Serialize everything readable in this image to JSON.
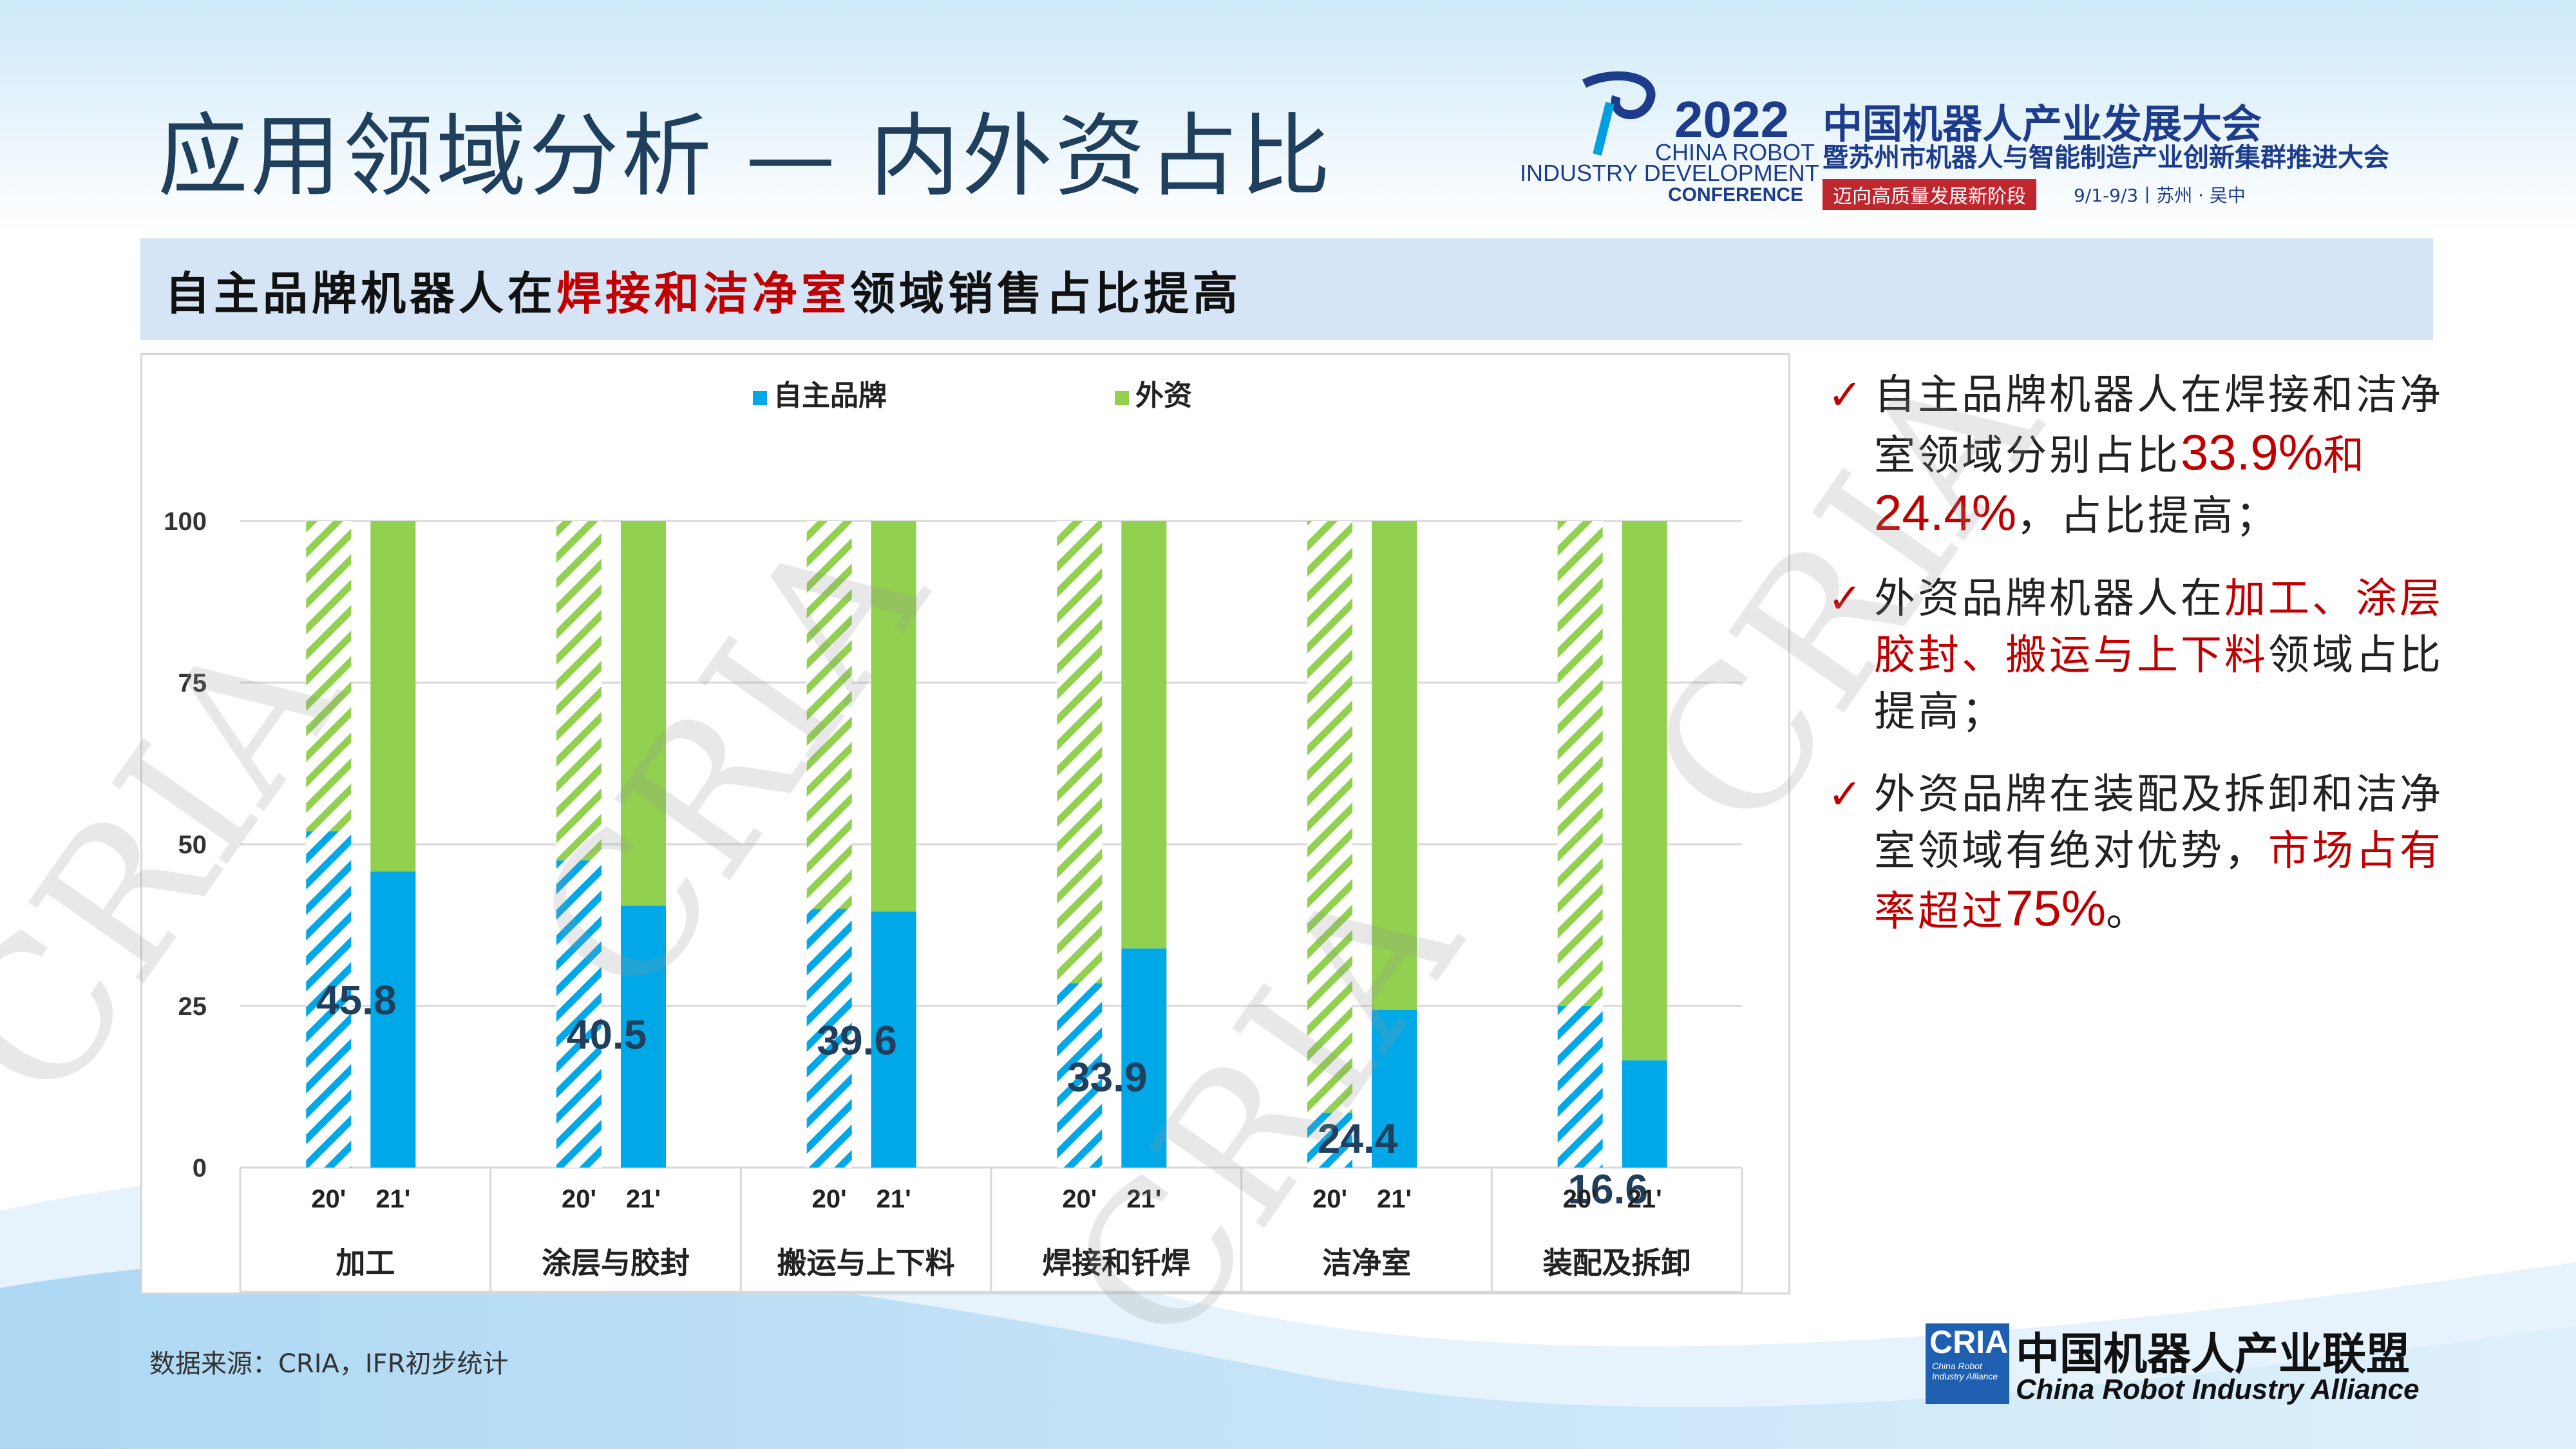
{
  "page": {
    "title": "应用领域分析  — 内外资占比",
    "banner": {
      "pre": "自主品牌机器人在",
      "highlight": "焊接和洁净室",
      "post": "领域销售占比提高"
    },
    "source": "数据来源：CRIA，IFR初步统计",
    "watermark": "CRIA"
  },
  "logo": {
    "year": "2022",
    "en1": "CHINA ROBOT",
    "en2": "INDUSTRY DEVELOPMENT",
    "en3": "CONFERENCE",
    "zh1": "中国机器人产业发展大会",
    "zh2": "暨苏州市机器人与智能制造产业创新集群推进大会",
    "tagline": "迈向高质量发展新阶段",
    "date_place": "9/1-9/3丨苏州 · 吴中"
  },
  "alliance": {
    "abbr": "CRIA",
    "abbr_sub": "China Robot Industry Alliance",
    "zh": "中国机器人产业联盟",
    "en": "China Robot Industry Alliance"
  },
  "bullets": [
    {
      "parts": [
        {
          "t": "自主品牌机器人在焊接和洁净室领域分别占比",
          "red": false
        },
        {
          "t": "33.9%",
          "red": true,
          "num": true
        },
        {
          "t": "和",
          "red": true
        },
        {
          "t": "24.4%",
          "red": true,
          "num": true
        },
        {
          "t": "，占比提高；",
          "red": false
        }
      ]
    },
    {
      "parts": [
        {
          "t": "外资品牌机器人在",
          "red": false
        },
        {
          "t": "加工、涂层胶封、搬运与上下料",
          "red": true
        },
        {
          "t": "领域占比提高；",
          "red": false
        }
      ]
    },
    {
      "parts": [
        {
          "t": "外资品牌在装配及拆卸和洁净室领域有绝对优势，",
          "red": false
        },
        {
          "t": "市场占有率超过",
          "red": true
        },
        {
          "t": "75%",
          "red": true,
          "num": true
        },
        {
          "t": "。",
          "red": false
        }
      ]
    }
  ],
  "chart_data": {
    "type": "bar",
    "stacked": true,
    "categories": [
      "加工",
      "涂层与胶封",
      "搬运与上下料",
      "焊接和钎焊",
      "洁净室",
      "装配及拆卸"
    ],
    "sub_categories": [
      "20'",
      "21'"
    ],
    "series": [
      {
        "name": "自主品牌",
        "color": "#00a8e8",
        "values_20": [
          52,
          47.5,
          40,
          28.5,
          8.5,
          25
        ],
        "values_21": [
          45.8,
          40.5,
          39.6,
          33.9,
          24.4,
          16.6
        ]
      },
      {
        "name": "外资",
        "color": "#92d050",
        "values_20": [
          48,
          52.5,
          60,
          71.5,
          91.5,
          75
        ],
        "values_21": [
          54.2,
          59.5,
          60.4,
          66.1,
          75.6,
          83.4
        ]
      }
    ],
    "data_labels": [
      "45.8",
      "40.5",
      "39.6",
      "33.9",
      "24.4",
      "16.6"
    ],
    "yticks": [
      "0",
      "25",
      "50",
      "75",
      "100"
    ],
    "ylim": [
      0,
      100
    ],
    "grid": true,
    "legend_position": "top-center",
    "hatched": "20'",
    "title": "",
    "xlabel": "",
    "ylabel": ""
  }
}
